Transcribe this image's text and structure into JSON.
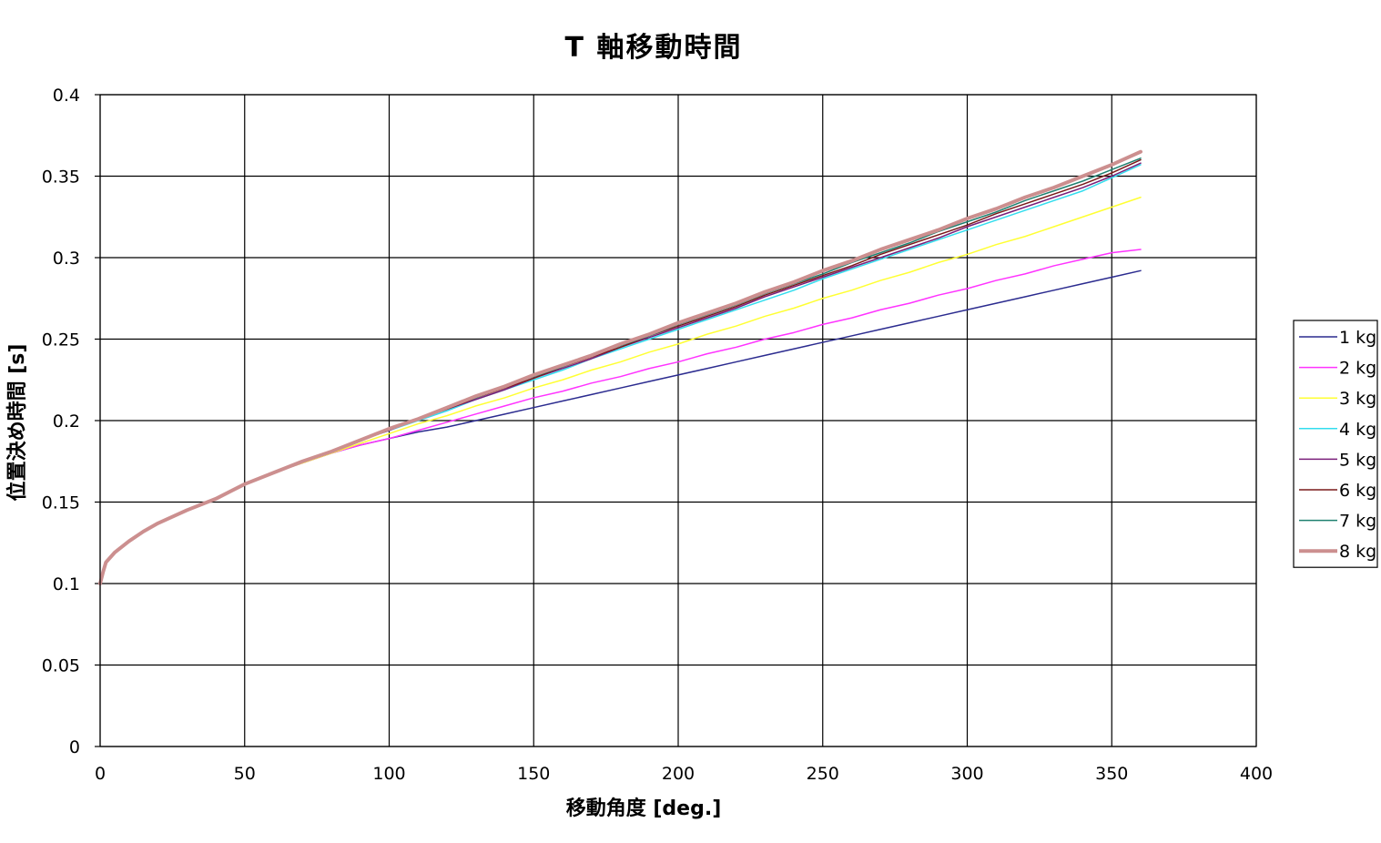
{
  "chart_data": {
    "type": "line",
    "title": "T 軸移動時間",
    "xlabel": "移動角度 [deg.]",
    "ylabel": "位置決め時間 [s]",
    "xlim": [
      0,
      400
    ],
    "ylim": [
      0,
      0.4
    ],
    "x_ticks": [
      "0",
      "50",
      "100",
      "150",
      "200",
      "250",
      "300",
      "350",
      "400"
    ],
    "y_ticks": [
      "0",
      "0.05",
      "0.1",
      "0.15",
      "0.2",
      "0.25",
      "0.3",
      "0.35",
      "0.4"
    ],
    "grid": true,
    "legend_position": "right",
    "x": [
      0,
      1,
      2,
      5,
      10,
      15,
      20,
      30,
      40,
      50,
      60,
      70,
      80,
      90,
      100,
      110,
      120,
      130,
      140,
      150,
      160,
      170,
      180,
      190,
      200,
      210,
      220,
      230,
      240,
      250,
      260,
      270,
      280,
      290,
      300,
      310,
      320,
      330,
      340,
      350,
      360
    ],
    "series": [
      {
        "name": "1 kg",
        "color": "#2b2b8f",
        "width": 1.5,
        "values": [
          0.1,
          0.107,
          0.113,
          0.119,
          0.126,
          0.132,
          0.137,
          0.145,
          0.152,
          0.161,
          0.168,
          0.174,
          0.18,
          0.185,
          0.189,
          0.193,
          0.196,
          0.2,
          0.204,
          0.208,
          0.212,
          0.216,
          0.22,
          0.224,
          0.228,
          0.232,
          0.236,
          0.24,
          0.244,
          0.248,
          0.252,
          0.256,
          0.26,
          0.264,
          0.268,
          0.272,
          0.276,
          0.28,
          0.284,
          0.288,
          0.292
        ]
      },
      {
        "name": "2 kg",
        "color": "#ff33ff",
        "width": 1.5,
        "values": [
          0.1,
          0.107,
          0.113,
          0.119,
          0.126,
          0.132,
          0.137,
          0.145,
          0.152,
          0.161,
          0.168,
          0.174,
          0.18,
          0.185,
          0.189,
          0.194,
          0.199,
          0.204,
          0.209,
          0.214,
          0.218,
          0.223,
          0.227,
          0.232,
          0.236,
          0.241,
          0.245,
          0.25,
          0.254,
          0.259,
          0.263,
          0.268,
          0.272,
          0.277,
          0.281,
          0.286,
          0.29,
          0.295,
          0.299,
          0.303,
          0.305
        ]
      },
      {
        "name": "3 kg",
        "color": "#ffff33",
        "width": 1.5,
        "values": [
          0.1,
          0.107,
          0.113,
          0.119,
          0.126,
          0.132,
          0.137,
          0.145,
          0.152,
          0.161,
          0.168,
          0.174,
          0.18,
          0.186,
          0.192,
          0.198,
          0.203,
          0.209,
          0.214,
          0.22,
          0.225,
          0.231,
          0.236,
          0.242,
          0.247,
          0.253,
          0.258,
          0.264,
          0.269,
          0.275,
          0.28,
          0.286,
          0.291,
          0.297,
          0.302,
          0.308,
          0.313,
          0.319,
          0.325,
          0.331,
          0.337
        ]
      },
      {
        "name": "4 kg",
        "color": "#33ddee",
        "width": 1.5,
        "values": [
          0.1,
          0.107,
          0.113,
          0.119,
          0.126,
          0.132,
          0.137,
          0.145,
          0.152,
          0.161,
          0.168,
          0.175,
          0.181,
          0.188,
          0.194,
          0.2,
          0.206,
          0.213,
          0.219,
          0.225,
          0.231,
          0.238,
          0.244,
          0.25,
          0.256,
          0.262,
          0.268,
          0.274,
          0.28,
          0.287,
          0.293,
          0.299,
          0.305,
          0.311,
          0.317,
          0.323,
          0.329,
          0.335,
          0.341,
          0.349,
          0.357
        ]
      },
      {
        "name": "5 kg",
        "color": "#7a1f7a",
        "width": 1.5,
        "values": [
          0.1,
          0.107,
          0.113,
          0.119,
          0.126,
          0.132,
          0.137,
          0.145,
          0.152,
          0.161,
          0.168,
          0.175,
          0.181,
          0.188,
          0.194,
          0.201,
          0.207,
          0.213,
          0.219,
          0.226,
          0.232,
          0.238,
          0.245,
          0.251,
          0.257,
          0.263,
          0.269,
          0.276,
          0.282,
          0.288,
          0.294,
          0.3,
          0.306,
          0.312,
          0.319,
          0.325,
          0.331,
          0.337,
          0.343,
          0.35,
          0.358
        ]
      },
      {
        "name": "6 kg",
        "color": "#7a1a1a",
        "width": 1.5,
        "values": [
          0.1,
          0.107,
          0.113,
          0.119,
          0.126,
          0.132,
          0.137,
          0.145,
          0.152,
          0.161,
          0.168,
          0.175,
          0.181,
          0.188,
          0.195,
          0.201,
          0.207,
          0.214,
          0.22,
          0.226,
          0.233,
          0.239,
          0.245,
          0.252,
          0.258,
          0.264,
          0.27,
          0.277,
          0.283,
          0.289,
          0.295,
          0.302,
          0.308,
          0.314,
          0.32,
          0.327,
          0.333,
          0.339,
          0.345,
          0.352,
          0.36
        ]
      },
      {
        "name": "7 kg",
        "color": "#1f8070",
        "width": 1.5,
        "values": [
          0.1,
          0.107,
          0.113,
          0.119,
          0.126,
          0.132,
          0.137,
          0.145,
          0.152,
          0.161,
          0.168,
          0.175,
          0.181,
          0.188,
          0.195,
          0.201,
          0.208,
          0.214,
          0.221,
          0.227,
          0.233,
          0.24,
          0.246,
          0.252,
          0.259,
          0.265,
          0.271,
          0.278,
          0.284,
          0.29,
          0.297,
          0.303,
          0.309,
          0.316,
          0.322,
          0.328,
          0.335,
          0.341,
          0.347,
          0.354,
          0.361
        ]
      },
      {
        "name": "8 kg",
        "color": "#cc8f8f",
        "width": 4,
        "values": [
          0.1,
          0.107,
          0.113,
          0.119,
          0.126,
          0.132,
          0.137,
          0.145,
          0.152,
          0.161,
          0.168,
          0.175,
          0.181,
          0.188,
          0.195,
          0.201,
          0.208,
          0.215,
          0.221,
          0.228,
          0.234,
          0.24,
          0.247,
          0.253,
          0.26,
          0.266,
          0.272,
          0.279,
          0.285,
          0.292,
          0.298,
          0.305,
          0.311,
          0.317,
          0.324,
          0.33,
          0.337,
          0.343,
          0.35,
          0.357,
          0.365
        ]
      }
    ]
  }
}
